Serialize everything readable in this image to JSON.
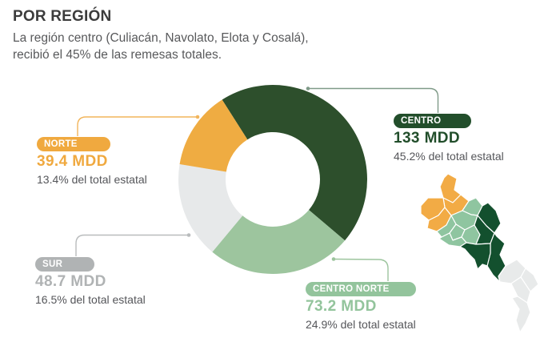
{
  "header": {
    "title": "POR REGIÓN",
    "subtitle": "La región centro (Culiacán, Navolato, Elota y Cosalá), recibió el 45% de las remesas totales."
  },
  "chart_data": {
    "type": "pie",
    "variant": "donut",
    "title": "POR REGIÓN",
    "unit": "MDD",
    "start_angle_deg": -32.5,
    "legend_position": "callouts-around-donut",
    "segments": [
      {
        "id": "centro",
        "label": "CENTRO",
        "value": 133,
        "value_label": "133 MDD",
        "pct": 45.2,
        "pct_label": "45.2% del total estatal",
        "accent": "#224e2b",
        "slice": "#2d4f2c",
        "leader": "#7f9a88"
      },
      {
        "id": "centro_norte",
        "label": "CENTRO NORTE",
        "value": 73.2,
        "value_label": "73.2 MDD",
        "pct": 24.9,
        "pct_label": "24.9% del total estatal",
        "accent": "#93c49c",
        "slice": "#9dc59e",
        "leader": "#9dc59e"
      },
      {
        "id": "sur",
        "label": "SUR",
        "value": 48.7,
        "value_label": "48.7 MDD",
        "pct": 16.5,
        "pct_label": "16.5% del total estatal",
        "accent": "#b0b3b4",
        "slice": "#e7e9ea",
        "leader": "#b9bcbd"
      },
      {
        "id": "norte",
        "label": "NORTE",
        "value": 39.4,
        "value_label": "39.4 MDD",
        "pct": 13.4,
        "pct_label": "13.4% del total estatal",
        "accent": "#f0a93f",
        "slice": "#efac42",
        "leader": "#f2b55c"
      }
    ]
  },
  "map": {
    "name": "Mapa de regiones de Sinaloa",
    "region_colors": {
      "norte": "#f2ab45",
      "centro_norte": "#8fc5a0",
      "centro": "#13502e",
      "sur": "#e8eaea"
    }
  }
}
